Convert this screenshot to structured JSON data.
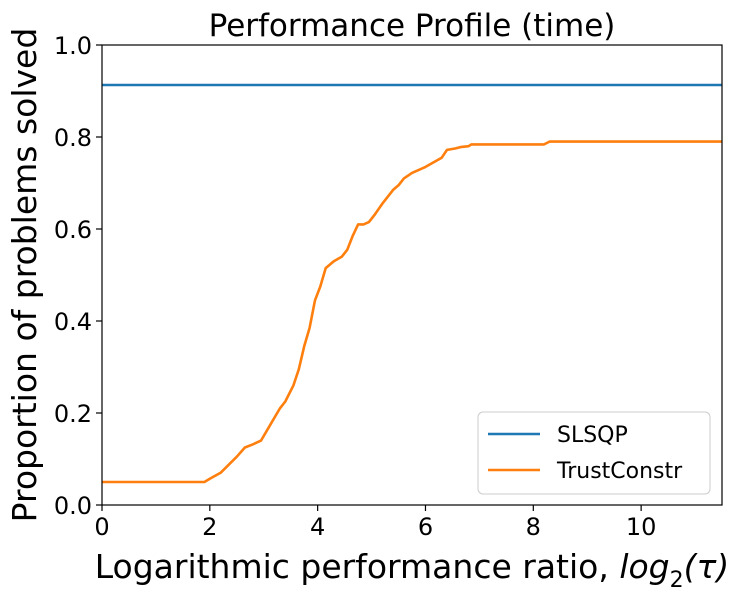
{
  "chart_data": {
    "type": "line",
    "title": "Performance Profile (time)",
    "xlabel": "Logarithmic performance ratio, ",
    "xlabel_math": {
      "base": "log",
      "sub": "2",
      "arg": "(τ)"
    },
    "ylabel": "Proportion of problems solved",
    "xlim": [
      0,
      11.5
    ],
    "ylim": [
      0,
      1.0
    ],
    "xticks": [
      0,
      2,
      4,
      6,
      8,
      10
    ],
    "xtick_labels": [
      "0",
      "2",
      "4",
      "6",
      "8",
      "10"
    ],
    "yticks": [
      0.0,
      0.2,
      0.4,
      0.6,
      0.8,
      1.0
    ],
    "ytick_labels": [
      "0.0",
      "0.2",
      "0.4",
      "0.6",
      "0.8",
      "1.0"
    ],
    "grid": false,
    "legend_position": "lower-right",
    "series": [
      {
        "name": "SLSQP",
        "color": "#1f77b4",
        "x": [
          0,
          11.5
        ],
        "y": [
          0.913,
          0.913
        ]
      },
      {
        "name": "TrustConstr",
        "color": "#ff7f0e",
        "x": [
          0,
          1.9,
          2.0,
          2.2,
          2.5,
          2.65,
          2.8,
          2.95,
          3.1,
          3.3,
          3.4,
          3.55,
          3.65,
          3.75,
          3.85,
          3.95,
          4.05,
          4.15,
          4.3,
          4.45,
          4.55,
          4.65,
          4.75,
          4.85,
          4.95,
          5.05,
          5.2,
          5.4,
          5.5,
          5.6,
          5.75,
          6.0,
          6.3,
          6.4,
          6.55,
          6.65,
          6.8,
          6.85,
          7.2,
          8.2,
          8.3,
          11.5
        ],
        "y": [
          0.05,
          0.05,
          0.057,
          0.07,
          0.105,
          0.125,
          0.132,
          0.14,
          0.17,
          0.21,
          0.225,
          0.26,
          0.295,
          0.345,
          0.385,
          0.445,
          0.475,
          0.515,
          0.53,
          0.54,
          0.555,
          0.585,
          0.61,
          0.61,
          0.615,
          0.63,
          0.655,
          0.685,
          0.695,
          0.71,
          0.722,
          0.735,
          0.755,
          0.772,
          0.775,
          0.778,
          0.78,
          0.784,
          0.784,
          0.784,
          0.79,
          0.79
        ]
      }
    ]
  }
}
